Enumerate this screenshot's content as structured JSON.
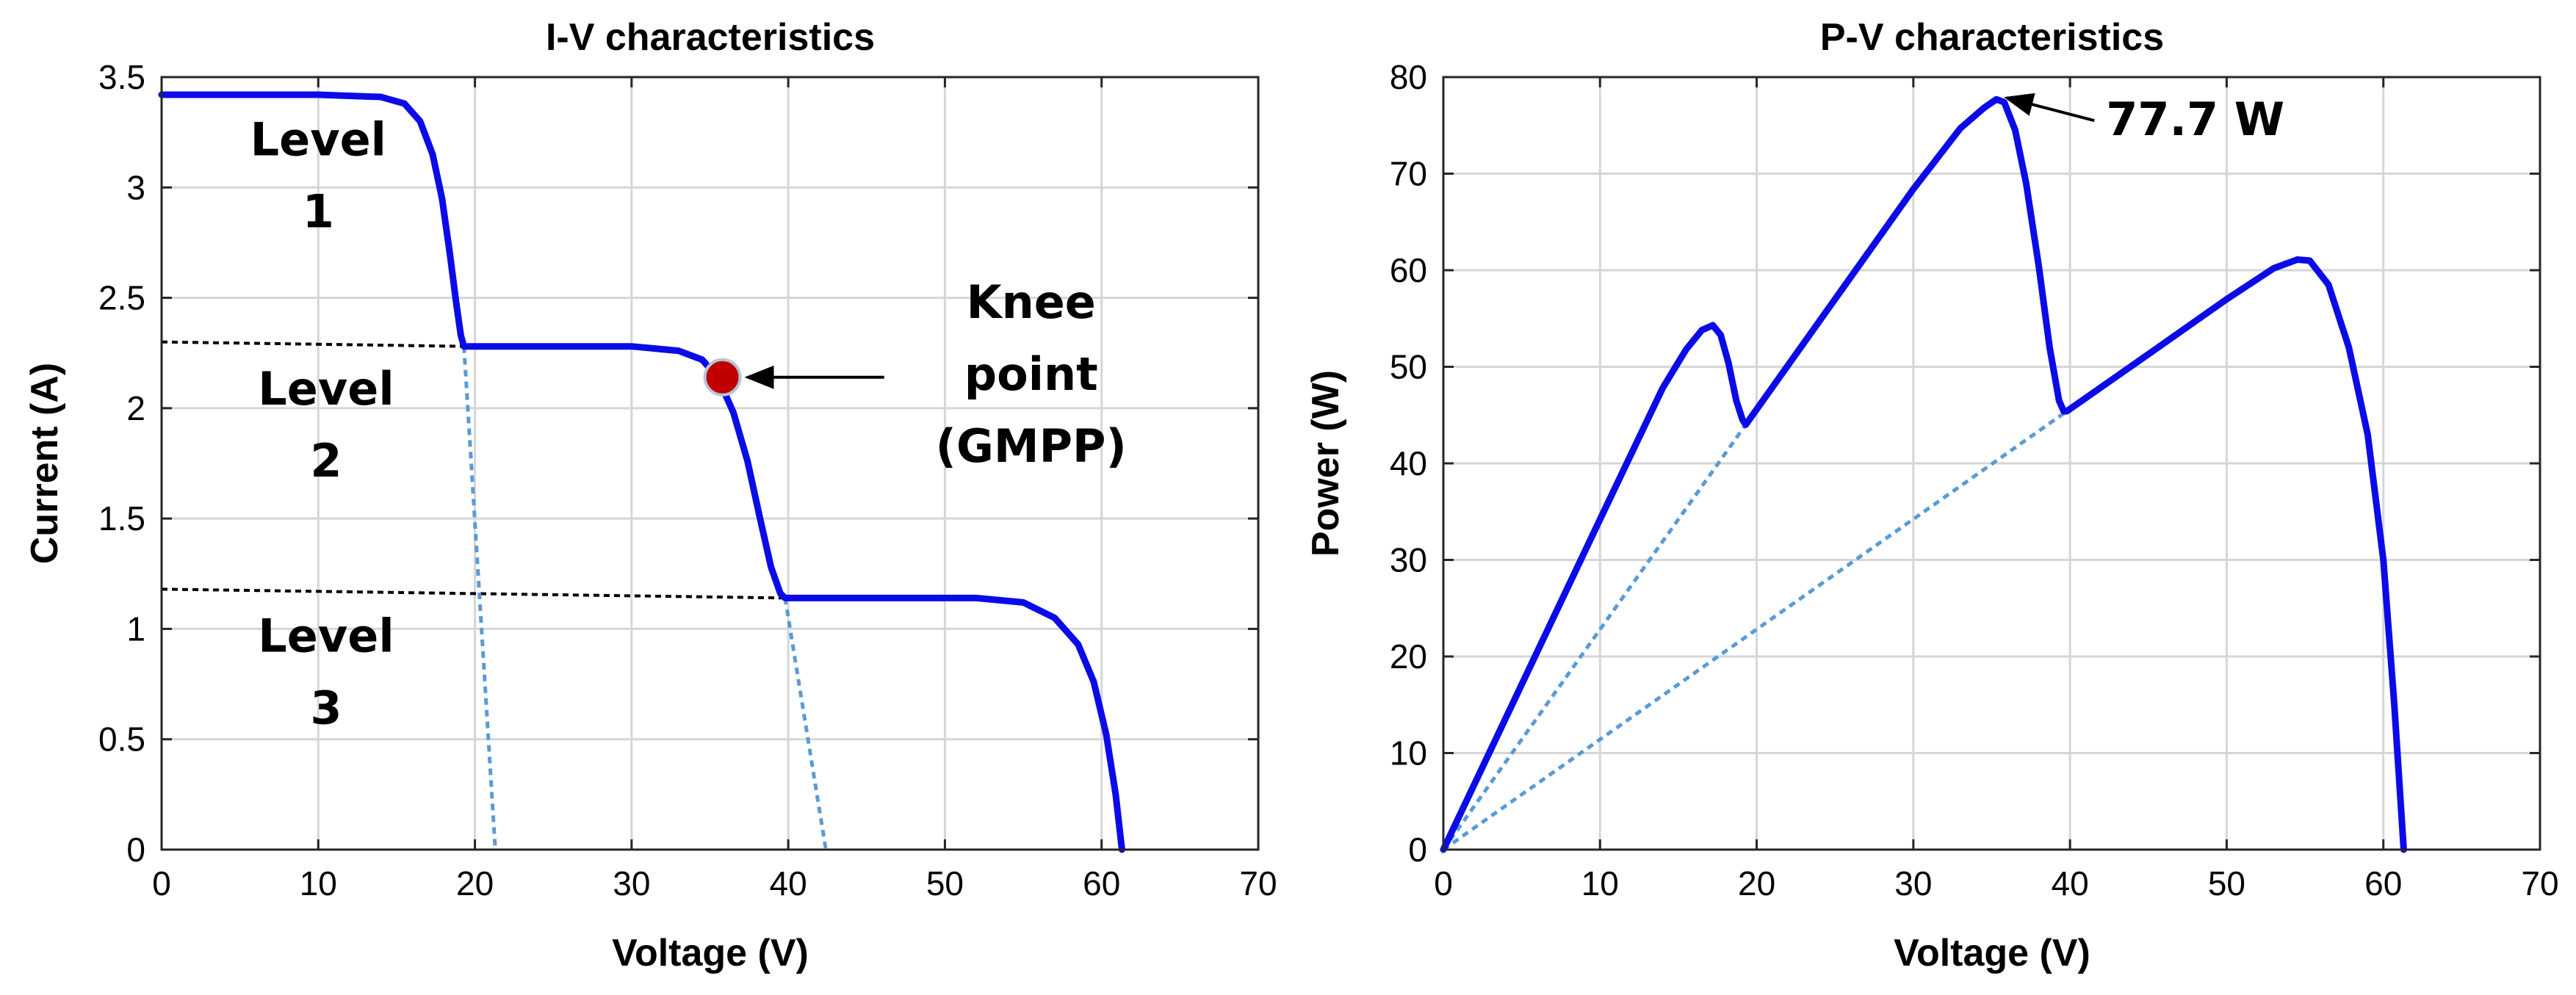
{
  "chart_data": [
    {
      "type": "line",
      "title": "I-V characteristics",
      "xlabel": "Voltage (V)",
      "ylabel": "Current (A)",
      "xlim": [
        0,
        70
      ],
      "ylim": [
        0,
        3.5
      ],
      "xticks": [
        0,
        10,
        20,
        30,
        40,
        50,
        60,
        70
      ],
      "xtick_labels": [
        "0",
        "10",
        "20",
        "30",
        "40",
        "50",
        "60",
        "70"
      ],
      "yticks": [
        0,
        0.5,
        1,
        1.5,
        2,
        2.5,
        3,
        3.5
      ],
      "ytick_labels": [
        "0",
        "0.5",
        "1",
        "1.5",
        "2",
        "2.5",
        "3",
        "3.5"
      ],
      "grid": true,
      "series": [
        {
          "name": "I-V curve",
          "x": [
            0,
            10,
            14,
            15.5,
            16.5,
            17.3,
            17.9,
            18.4,
            18.8,
            19.1,
            19.3,
            22,
            30,
            33,
            34.5,
            35.5,
            36.5,
            37.4,
            38.2,
            38.9,
            39.5,
            39.8,
            45,
            52,
            55,
            57,
            58.5,
            59.5,
            60.3,
            60.9,
            61.3
          ],
          "y": [
            3.42,
            3.42,
            3.41,
            3.38,
            3.3,
            3.15,
            2.95,
            2.7,
            2.48,
            2.33,
            2.28,
            2.28,
            2.28,
            2.26,
            2.22,
            2.14,
            1.98,
            1.76,
            1.5,
            1.28,
            1.16,
            1.14,
            1.14,
            1.14,
            1.12,
            1.05,
            0.93,
            0.76,
            0.52,
            0.25,
            0
          ]
        }
      ],
      "reference_lines": [
        {
          "name": "level boundary 1-2",
          "x": [
            0,
            19.3
          ],
          "y": [
            2.3,
            2.28
          ]
        },
        {
          "name": "level boundary 2-3",
          "x": [
            0,
            39.8
          ],
          "y": [
            1.18,
            1.14
          ]
        },
        {
          "name": "extrapolation 1",
          "x": [
            19.3,
            21.3
          ],
          "y": [
            2.28,
            0
          ]
        },
        {
          "name": "extrapolation 2",
          "x": [
            39.8,
            42.4
          ],
          "y": [
            1.14,
            0
          ]
        }
      ],
      "knee_point": {
        "x": 35.8,
        "y": 2.14
      },
      "annotations": [
        {
          "text_lines": [
            "Level",
            "1"
          ],
          "x": 10,
          "y": 3.05
        },
        {
          "text_lines": [
            "Level",
            "2"
          ],
          "x": 10.5,
          "y": 1.92
        },
        {
          "text_lines": [
            "Level",
            "3"
          ],
          "x": 10.5,
          "y": 0.8
        },
        {
          "text_lines": [
            "Knee",
            "point",
            "(GMPP)"
          ],
          "x": 55.5,
          "y": 2.15
        }
      ]
    },
    {
      "type": "line",
      "title": "P-V characteristics",
      "xlabel": "Voltage (V)",
      "ylabel": "Power (W)",
      "xlim": [
        0,
        70
      ],
      "ylim": [
        0,
        80
      ],
      "xticks": [
        0,
        10,
        20,
        30,
        40,
        50,
        60,
        70
      ],
      "xtick_labels": [
        "0",
        "10",
        "20",
        "30",
        "40",
        "50",
        "60",
        "70"
      ],
      "yticks": [
        0,
        10,
        20,
        30,
        40,
        50,
        60,
        70,
        80
      ],
      "ytick_labels": [
        "0",
        "10",
        "20",
        "30",
        "40",
        "50",
        "60",
        "70",
        "80"
      ],
      "grid": true,
      "series": [
        {
          "name": "P-V curve",
          "x": [
            0,
            5,
            10,
            14,
            15.5,
            16.5,
            17.2,
            17.7,
            18.2,
            18.7,
            19.1,
            19.3,
            25,
            30,
            33,
            34.5,
            35.3,
            35.8,
            36.5,
            37.2,
            38,
            38.7,
            39.3,
            39.6,
            39.8,
            45,
            50,
            53,
            54.5,
            55.3,
            56.5,
            57.8,
            59,
            60,
            60.7,
            61.1,
            61.3
          ],
          "y": [
            0,
            17.1,
            34.2,
            47.8,
            51.8,
            53.8,
            54.3,
            53.3,
            50.4,
            46.5,
            44.5,
            44,
            57,
            68.4,
            74.7,
            76.8,
            77.7,
            77.4,
            74.5,
            69,
            60.5,
            52,
            46.5,
            45.4,
            45.4,
            51.3,
            57,
            60.2,
            61.1,
            61,
            58.5,
            52,
            43,
            30,
            15,
            5,
            0
          ]
        }
      ],
      "reference_lines": [
        {
          "name": "ray to first dip",
          "x": [
            0,
            19.3
          ],
          "y": [
            0,
            44
          ]
        },
        {
          "name": "ray to second dip",
          "x": [
            0,
            39.8
          ],
          "y": [
            0,
            45.4
          ]
        }
      ],
      "annotations": [
        {
          "text": "77.7 W",
          "x": 42.3,
          "y": 75.5,
          "arrow_to": {
            "x": 35.3,
            "y": 77.7
          }
        }
      ]
    }
  ]
}
